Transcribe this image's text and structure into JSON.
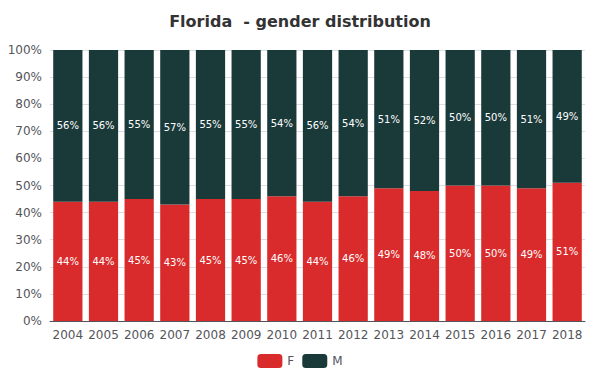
{
  "chart_data": {
    "type": "bar",
    "title": "Florida  - gender distribution",
    "categories": [
      "2004",
      "2005",
      "2006",
      "2007",
      "2008",
      "2009",
      "2010",
      "2011",
      "2012",
      "2013",
      "2014",
      "2015",
      "2016",
      "2017",
      "2018"
    ],
    "series": [
      {
        "name": "F",
        "color": "#d92b2b",
        "values": [
          44,
          44,
          45,
          43,
          45,
          45,
          46,
          44,
          46,
          49,
          48,
          50,
          50,
          49,
          51
        ],
        "value_labels": [
          "44%",
          "44%",
          "45%",
          "43%",
          "45%",
          "45%",
          "46%",
          "44%",
          "46%",
          "49%",
          "48%",
          "50%",
          "50%",
          "49%",
          "51%"
        ]
      },
      {
        "name": "M",
        "color": "#1a3a3a",
        "values": [
          56,
          56,
          55,
          57,
          55,
          55,
          54,
          56,
          54,
          51,
          52,
          50,
          50,
          51,
          49
        ],
        "value_labels": [
          "56%",
          "56%",
          "55%",
          "57%",
          "55%",
          "55%",
          "54%",
          "56%",
          "54%",
          "51%",
          "52%",
          "50%",
          "50%",
          "51%",
          "49%"
        ]
      }
    ],
    "ylim": [
      0,
      100
    ],
    "yticks": [
      {
        "value": 0,
        "label": "0%"
      },
      {
        "value": 10,
        "label": "10%"
      },
      {
        "value": 20,
        "label": "20%"
      },
      {
        "value": 30,
        "label": "30%"
      },
      {
        "value": 40,
        "label": "40%"
      },
      {
        "value": 50,
        "label": "50%"
      },
      {
        "value": 60,
        "label": "60%"
      },
      {
        "value": 70,
        "label": "70%"
      },
      {
        "value": 80,
        "label": "80%"
      },
      {
        "value": 90,
        "label": "90%"
      },
      {
        "value": 100,
        "label": "100%"
      }
    ],
    "stacked": true,
    "grid": true,
    "legend": "bottom",
    "data_labels": true
  }
}
